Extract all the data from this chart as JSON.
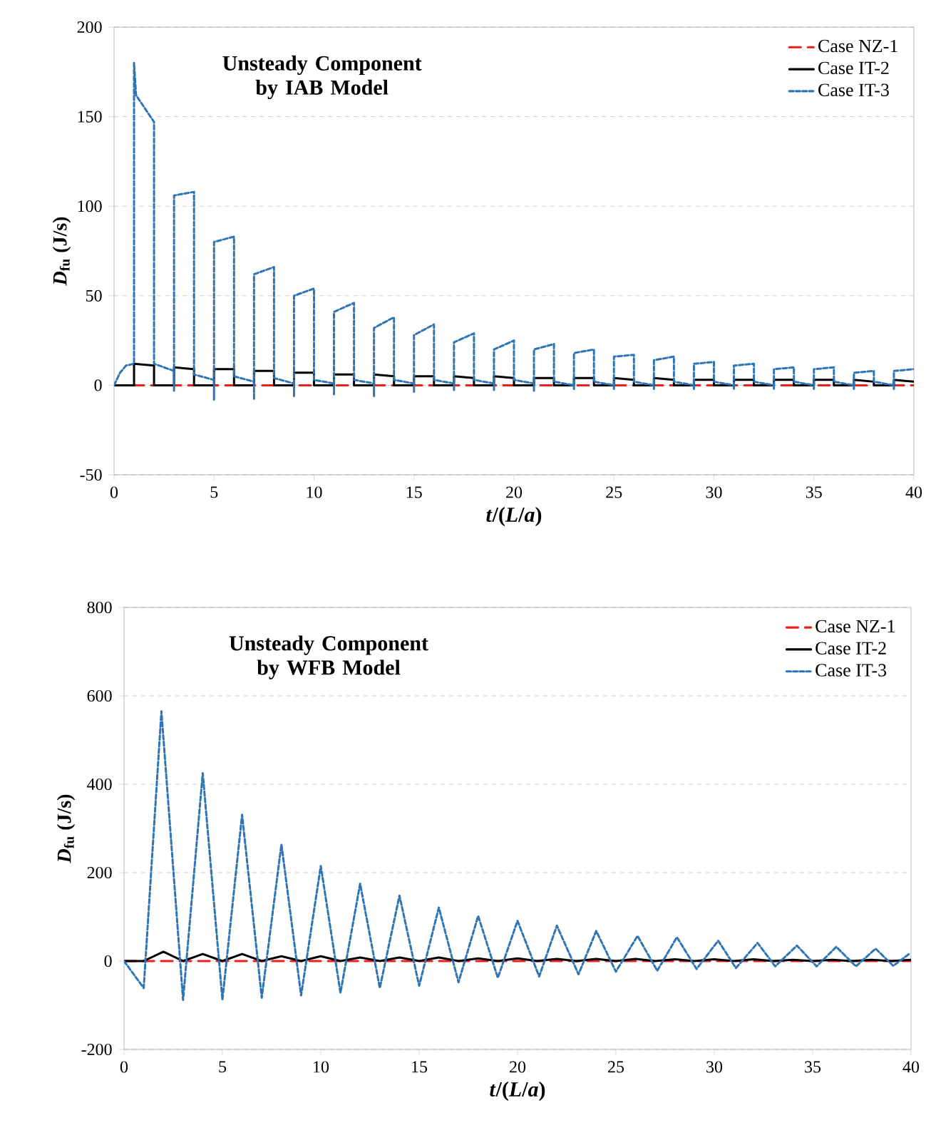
{
  "chart_data": [
    {
      "type": "line",
      "title": "Unsteady Component by IAB Model",
      "xlabel": "*t*/(*L*/*a*)",
      "ylabel": "*D*$_{fu}$ (J/s)",
      "xlim": [
        0,
        40
      ],
      "xticks": [
        0,
        5,
        10,
        15,
        20,
        25,
        30,
        35,
        40
      ],
      "ylim": [
        -50,
        200
      ],
      "yticks": [
        -50,
        0,
        50,
        100,
        150,
        200
      ],
      "grid": "y",
      "legend": "top right",
      "series": [
        {
          "name": "Case NZ-1",
          "color": "#e8201e",
          "line_style": "dashed",
          "x": [
            0,
            40
          ],
          "values": [
            0,
            0
          ]
        },
        {
          "name": "Case IT-2",
          "color": "#000000",
          "line_style": "solid",
          "x": [
            0,
            1,
            1,
            2,
            2,
            3,
            3,
            4,
            4,
            5,
            5,
            6,
            6,
            7,
            7,
            8,
            8,
            9,
            9,
            10,
            10,
            11,
            11,
            12,
            12,
            13,
            13,
            14,
            14,
            15,
            15,
            16,
            16,
            17,
            17,
            18,
            18,
            19,
            19,
            20,
            20,
            21,
            21,
            22,
            22,
            23,
            23,
            24,
            24,
            25,
            25,
            26,
            26,
            27,
            27,
            28,
            28,
            29,
            29,
            30,
            30,
            31,
            31,
            32,
            32,
            33,
            33,
            34,
            34,
            35,
            35,
            36,
            36,
            37,
            37,
            38,
            38,
            39,
            39,
            40
          ],
          "values": [
            0,
            0,
            12,
            11,
            0,
            0,
            10,
            9,
            0,
            0,
            9,
            9,
            0,
            0,
            8,
            8,
            0,
            0,
            7,
            7,
            0,
            0,
            6,
            6,
            0,
            0,
            6,
            5,
            0,
            0,
            5,
            5,
            0,
            0,
            5,
            4,
            0,
            0,
            5,
            4,
            0,
            0,
            4,
            4,
            0,
            0,
            4,
            4,
            0,
            0,
            4,
            3,
            0,
            0,
            4,
            3,
            0,
            0,
            3,
            3,
            0,
            0,
            3,
            3,
            0,
            0,
            3,
            3,
            0,
            0,
            3,
            3,
            0,
            0,
            3,
            2,
            0,
            0,
            3,
            2
          ]
        },
        {
          "name": "Case IT-3",
          "color": "#2e75b6",
          "line_style": "dotted",
          "x": [
            0,
            0.3,
            0.6,
            1,
            1,
            1.1,
            2,
            2,
            3,
            3,
            3,
            4,
            4,
            5,
            5,
            5,
            6,
            6,
            7,
            7,
            7,
            8,
            8,
            9,
            9,
            9,
            10,
            10,
            11,
            11,
            11,
            12,
            12,
            13,
            13,
            13,
            14,
            14,
            15,
            15,
            15,
            16,
            16,
            17,
            17,
            17,
            18,
            18,
            19,
            19,
            19,
            20,
            20,
            21,
            21,
            21,
            22,
            22,
            23,
            23,
            23,
            24,
            24,
            25,
            25,
            25,
            26,
            26,
            27,
            27,
            27,
            28,
            28,
            29,
            29,
            29,
            30,
            30,
            31,
            31,
            31,
            32,
            32,
            33,
            33,
            33,
            34,
            34,
            35,
            35,
            35,
            36,
            36,
            37,
            37,
            37,
            38,
            38,
            39,
            39,
            39,
            40
          ],
          "values": [
            0,
            7,
            11,
            12,
            180,
            162,
            147,
            12,
            8,
            -3,
            106,
            108,
            6,
            3,
            -8,
            80,
            83,
            5,
            2,
            -8,
            62,
            66,
            4,
            1,
            -6,
            50,
            54,
            3,
            1,
            -5,
            41,
            46,
            3,
            1,
            -6,
            32,
            38,
            3,
            1,
            -4,
            28,
            34,
            3,
            1,
            -3,
            24,
            29,
            3,
            1,
            -3,
            20,
            25,
            3,
            1,
            -3,
            20,
            23,
            2,
            0,
            -2,
            18,
            20,
            2,
            0,
            -2,
            16,
            17,
            2,
            0,
            -2,
            14,
            16,
            2,
            0,
            -2,
            12,
            13,
            2,
            0,
            -2,
            11,
            12,
            2,
            0,
            -2,
            9,
            10,
            2,
            0,
            -2,
            9,
            10,
            2,
            0,
            -2,
            7,
            8,
            2,
            0,
            -2,
            8,
            9
          ]
        }
      ]
    },
    {
      "type": "line",
      "title": "Unsteady Component by WFB Model",
      "xlabel": "*t*/(*L*/*a*)",
      "ylabel": "*D*$_{fu}$ (J/s)",
      "xlim": [
        0,
        40
      ],
      "xticks": [
        0,
        5,
        10,
        15,
        20,
        25,
        30,
        35,
        40
      ],
      "ylim": [
        -200,
        800
      ],
      "yticks": [
        -200,
        0,
        200,
        400,
        600,
        800
      ],
      "grid": "y",
      "legend": "top right",
      "series": [
        {
          "name": "Case NZ-1",
          "color": "#e8201e",
          "line_style": "dashed",
          "x": [
            0,
            40
          ],
          "values": [
            0,
            0
          ]
        },
        {
          "name": "Case IT-2",
          "color": "#000000",
          "line_style": "solid",
          "x": [
            0,
            1,
            2,
            3,
            4,
            5,
            6,
            7,
            8,
            9,
            10,
            11,
            12,
            13,
            14,
            15,
            16,
            17,
            18,
            19,
            20,
            21,
            22,
            23,
            24,
            25,
            26,
            27,
            28,
            29,
            30,
            31,
            32,
            33,
            34,
            35,
            36,
            37,
            38,
            39,
            40
          ],
          "values": [
            0,
            0,
            21,
            0,
            16,
            0,
            16,
            0,
            11,
            0,
            11,
            0,
            8,
            0,
            8,
            0,
            8,
            0,
            6,
            0,
            6,
            0,
            5,
            0,
            5,
            0,
            5,
            0,
            4,
            0,
            4,
            0,
            4,
            0,
            3,
            0,
            3,
            0,
            3,
            0,
            3
          ]
        },
        {
          "name": "Case IT-3",
          "color": "#2e75b6",
          "line_style": "dotted",
          "x": [
            0,
            1,
            1.9,
            3,
            4,
            5,
            6,
            7,
            8,
            9,
            10,
            11,
            12,
            13,
            14,
            15,
            16,
            17,
            18,
            19,
            20,
            21.1,
            22,
            23.1,
            24,
            25,
            26.1,
            27.1,
            28.1,
            29.1,
            30.2,
            31.1,
            32.2,
            33.1,
            34.2,
            35.2,
            36.2,
            37.2,
            38.2,
            39.1,
            39.9
          ],
          "values": [
            0,
            -61,
            565,
            -88,
            425,
            -88,
            331,
            -83,
            264,
            -78,
            215,
            -72,
            175,
            -61,
            148,
            -56,
            121,
            -48,
            102,
            -38,
            91,
            -35,
            80,
            -30,
            68,
            -24,
            57,
            -22,
            54,
            -18,
            46,
            -16,
            41,
            -12,
            35,
            -12,
            32,
            -12,
            28,
            -11,
            16
          ]
        }
      ]
    }
  ]
}
